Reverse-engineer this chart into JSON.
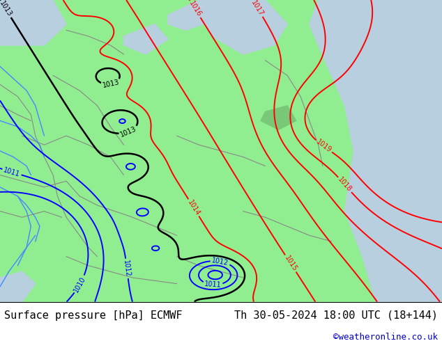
{
  "title_left": "Surface pressure [hPa] ECMWF",
  "title_right": "Th 30-05-2024 18:00 UTC (18+144)",
  "credit": "©weatheronline.co.uk",
  "credit_color": "#0000cc",
  "land_color": "#90ee90",
  "sea_color": "#b8cfe0",
  "bg_color": "#c8c8c8",
  "isobar_red": "#ff0000",
  "isobar_black": "#000000",
  "isobar_blue": "#0000ff",
  "footer_fontsize": 11,
  "credit_fontsize": 9,
  "fig_width": 6.34,
  "fig_height": 4.9,
  "dpi": 100
}
